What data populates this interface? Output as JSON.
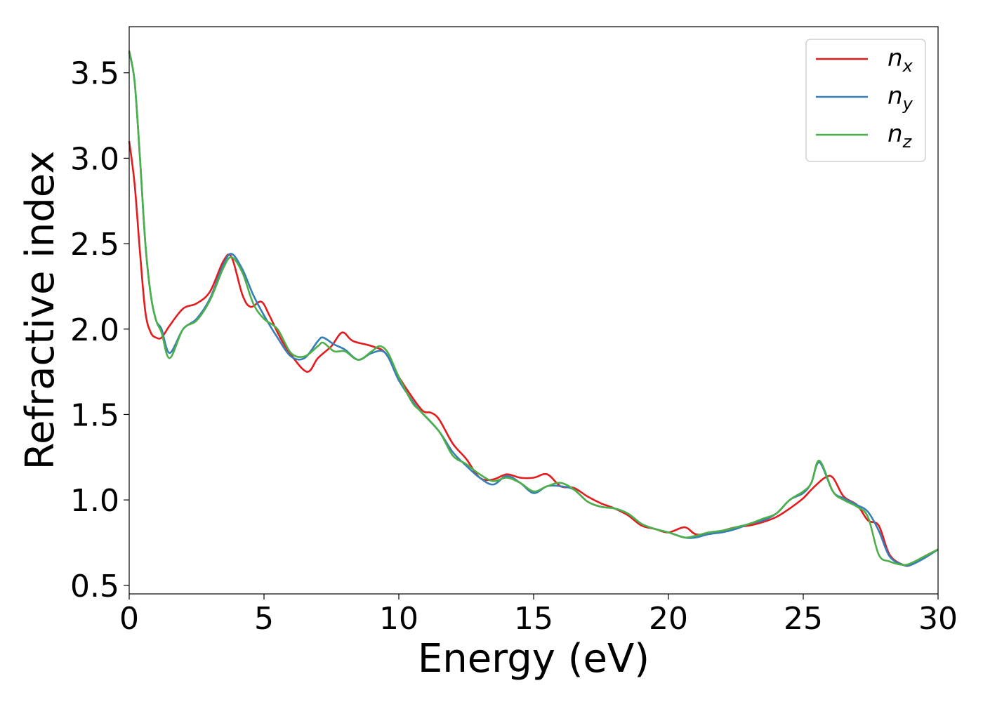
{
  "chart_data": {
    "type": "line",
    "xlabel": "Energy (eV)",
    "ylabel": "Refractive index",
    "xlim": [
      0,
      30
    ],
    "ylim": [
      0.45,
      3.77
    ],
    "x_ticks": [
      0,
      5,
      10,
      15,
      20,
      25,
      30
    ],
    "x_tick_labels": [
      "0",
      "5",
      "10",
      "15",
      "20",
      "25",
      "30"
    ],
    "y_ticks": [
      0.5,
      1.0,
      1.5,
      2.0,
      2.5,
      3.0,
      3.5
    ],
    "y_tick_labels": [
      "0.5",
      "1.0",
      "1.5",
      "2.0",
      "2.5",
      "3.0",
      "3.5"
    ],
    "grid": false,
    "legend_position": "top-right",
    "series": [
      {
        "name": "n",
        "subscript": "x",
        "color": "#e41a1c",
        "x": [
          0,
          0.2,
          0.4,
          0.6,
          0.8,
          1.0,
          1.2,
          1.5,
          2.0,
          2.5,
          3.0,
          3.5,
          3.8,
          4.2,
          4.5,
          4.9,
          5.2,
          5.6,
          6.0,
          6.6,
          7.0,
          7.5,
          7.9,
          8.3,
          9.0,
          9.5,
          10.0,
          10.5,
          10.9,
          11.2,
          11.5,
          12.0,
          12.5,
          13.0,
          13.5,
          14.0,
          14.5,
          15.0,
          15.5,
          16.0,
          16.5,
          17.0,
          17.5,
          18.0,
          18.5,
          19.0,
          19.5,
          20.0,
          20.6,
          21.0,
          21.5,
          22.0,
          22.5,
          23.0,
          23.5,
          24.0,
          24.5,
          25.0,
          25.3,
          25.8,
          26.1,
          26.5,
          27.0,
          27.4,
          27.8,
          28.2,
          28.7,
          29.0,
          29.5,
          30.0
        ],
        "y": [
          3.1,
          2.85,
          2.45,
          2.1,
          1.98,
          1.95,
          1.95,
          2.02,
          2.12,
          2.15,
          2.22,
          2.4,
          2.42,
          2.2,
          2.13,
          2.16,
          2.08,
          1.95,
          1.85,
          1.75,
          1.83,
          1.9,
          1.98,
          1.93,
          1.9,
          1.86,
          1.72,
          1.6,
          1.52,
          1.51,
          1.47,
          1.33,
          1.24,
          1.13,
          1.12,
          1.15,
          1.13,
          1.13,
          1.15,
          1.08,
          1.07,
          1.02,
          0.98,
          0.95,
          0.91,
          0.85,
          0.83,
          0.81,
          0.84,
          0.8,
          0.8,
          0.82,
          0.84,
          0.85,
          0.87,
          0.9,
          0.95,
          1.01,
          1.06,
          1.13,
          1.13,
          1.02,
          0.97,
          0.88,
          0.85,
          0.68,
          0.62,
          0.62,
          0.67,
          0.71
        ]
      },
      {
        "name": "n",
        "subscript": "y",
        "color": "#377eb8",
        "x": [
          0,
          0.2,
          0.4,
          0.6,
          0.8,
          1.0,
          1.2,
          1.5,
          2.0,
          2.5,
          3.0,
          3.5,
          3.8,
          4.2,
          4.6,
          5.0,
          5.5,
          6.0,
          6.5,
          7.0,
          7.2,
          7.6,
          8.0,
          8.5,
          9.0,
          9.5,
          10.0,
          10.5,
          10.8,
          11.5,
          12.0,
          12.5,
          13.0,
          13.5,
          14.0,
          14.5,
          15.0,
          15.5,
          16.0,
          16.5,
          17.0,
          17.5,
          18.0,
          18.5,
          19.0,
          19.5,
          20.0,
          20.6,
          21.0,
          21.5,
          22.0,
          22.5,
          23.0,
          23.5,
          24.0,
          24.5,
          25.0,
          25.3,
          25.6,
          26.1,
          26.5,
          27.0,
          27.4,
          27.8,
          28.2,
          28.7,
          29.0,
          29.5,
          30.0
        ],
        "y": [
          3.62,
          3.45,
          3.0,
          2.5,
          2.2,
          2.05,
          2.0,
          1.86,
          2.0,
          2.06,
          2.18,
          2.38,
          2.44,
          2.35,
          2.2,
          2.08,
          1.95,
          1.84,
          1.83,
          1.93,
          1.95,
          1.91,
          1.88,
          1.82,
          1.86,
          1.86,
          1.7,
          1.58,
          1.52,
          1.4,
          1.28,
          1.2,
          1.13,
          1.09,
          1.14,
          1.1,
          1.04,
          1.08,
          1.08,
          1.06,
          0.99,
          0.96,
          0.95,
          0.92,
          0.86,
          0.83,
          0.81,
          0.78,
          0.78,
          0.8,
          0.81,
          0.83,
          0.86,
          0.88,
          0.92,
          1.0,
          1.04,
          1.1,
          1.22,
          1.05,
          1.01,
          0.97,
          0.93,
          0.82,
          0.67,
          0.62,
          0.62,
          0.66,
          0.71
        ]
      },
      {
        "name": "n",
        "subscript": "z",
        "color": "#4daf4a",
        "x": [
          0,
          0.2,
          0.4,
          0.6,
          0.8,
          1.0,
          1.2,
          1.5,
          2.0,
          2.5,
          3.0,
          3.5,
          3.8,
          4.2,
          4.6,
          5.0,
          5.5,
          6.0,
          6.5,
          7.0,
          7.2,
          7.6,
          8.0,
          8.5,
          9.0,
          9.3,
          9.6,
          10.0,
          10.5,
          10.8,
          11.5,
          12.0,
          12.5,
          13.0,
          13.5,
          14.0,
          14.5,
          15.0,
          15.5,
          16.0,
          16.5,
          17.0,
          17.5,
          18.0,
          18.5,
          19.0,
          19.5,
          20.0,
          20.6,
          21.0,
          21.5,
          22.0,
          22.5,
          23.0,
          23.5,
          24.0,
          24.5,
          25.0,
          25.3,
          25.6,
          26.1,
          26.5,
          27.0,
          27.4,
          27.8,
          28.2,
          28.7,
          29.0,
          29.5,
          30.0
        ],
        "y": [
          3.63,
          3.45,
          3.0,
          2.5,
          2.2,
          2.05,
          1.98,
          1.83,
          2.0,
          2.05,
          2.17,
          2.36,
          2.42,
          2.33,
          2.15,
          2.06,
          2.0,
          1.86,
          1.84,
          1.9,
          1.92,
          1.87,
          1.87,
          1.82,
          1.87,
          1.9,
          1.86,
          1.72,
          1.57,
          1.52,
          1.4,
          1.26,
          1.21,
          1.15,
          1.11,
          1.13,
          1.1,
          1.05,
          1.08,
          1.1,
          1.06,
          0.99,
          0.96,
          0.95,
          0.92,
          0.86,
          0.83,
          0.81,
          0.78,
          0.79,
          0.81,
          0.82,
          0.84,
          0.86,
          0.89,
          0.92,
          1.0,
          1.05,
          1.1,
          1.23,
          1.05,
          1.0,
          0.96,
          0.9,
          0.68,
          0.64,
          0.62,
          0.63,
          0.67,
          0.71
        ]
      }
    ]
  }
}
